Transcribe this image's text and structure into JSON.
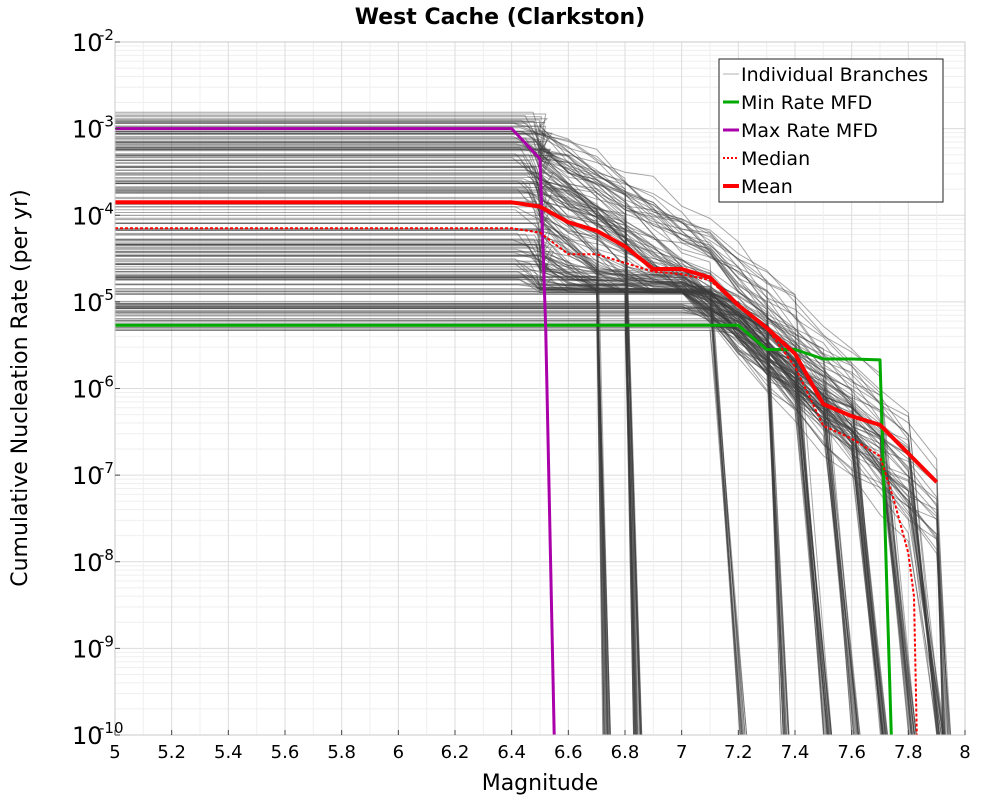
{
  "chart_data": {
    "type": "line",
    "title": "West Cache (Clarkston)",
    "xlabel": "Magnitude",
    "ylabel": "Cumulative Nucleation Rate (per yr)",
    "xlim": [
      5,
      8
    ],
    "ylim_log10": [
      -10,
      -2
    ],
    "y_scale": "log",
    "x_ticks": [
      5,
      5.2,
      5.4,
      5.6,
      5.8,
      6,
      6.2,
      6.4,
      6.6,
      6.8,
      7,
      7.2,
      7.4,
      7.6,
      7.8,
      8
    ],
    "x_tick_labels": [
      "5",
      "5.2",
      "5.4",
      "5.6",
      "5.8",
      "6",
      "6.2",
      "6.4",
      "6.6",
      "6.8",
      "7",
      "7.2",
      "7.4",
      "7.6",
      "7.8",
      "8"
    ],
    "y_ticks": [
      {
        "base": "10",
        "exp": "-2"
      },
      {
        "base": "10",
        "exp": "-3"
      },
      {
        "base": "10",
        "exp": "-4"
      },
      {
        "base": "10",
        "exp": "-5"
      },
      {
        "base": "10",
        "exp": "-6"
      },
      {
        "base": "10",
        "exp": "-7"
      },
      {
        "base": "10",
        "exp": "-8"
      },
      {
        "base": "10",
        "exp": "-9"
      },
      {
        "base": "10",
        "exp": "-10"
      }
    ],
    "grid": true,
    "legend_position": "top-right",
    "legend": [
      {
        "label": "Individual Branches",
        "color": "#b0b0b0",
        "style": "solid",
        "width": 1
      },
      {
        "label": "Min Rate MFD",
        "color": "#00aa00",
        "style": "solid",
        "width": 3
      },
      {
        "label": "Max Rate MFD",
        "color": "#aa00aa",
        "style": "solid",
        "width": 3
      },
      {
        "label": "Median",
        "color": "#ff0000",
        "style": "dotted",
        "width": 2
      },
      {
        "label": "Mean",
        "color": "#ff0000",
        "style": "solid",
        "width": 4
      }
    ],
    "series": [
      {
        "name": "Min Rate MFD",
        "color": "#00aa00",
        "width": 3,
        "dash": "",
        "x": [
          5,
          6.5,
          7.2,
          7.3,
          7.4,
          7.5,
          7.6,
          7.7,
          7.74,
          7.74
        ],
        "y_log10": [
          -5.27,
          -5.27,
          -5.27,
          -5.55,
          -5.55,
          -5.66,
          -5.66,
          -5.67,
          -10,
          -10
        ]
      },
      {
        "name": "Max Rate MFD",
        "color": "#aa00aa",
        "width": 3,
        "dash": "",
        "x": [
          5,
          6.4,
          6.5,
          6.52,
          6.55
        ],
        "y_log10": [
          -3.0,
          -3.0,
          -3.35,
          -5.3,
          -10
        ]
      },
      {
        "name": "Median",
        "color": "#ff0000",
        "width": 2,
        "dash": "3,2",
        "x": [
          5,
          6.4,
          6.5,
          6.6,
          6.7,
          6.8,
          6.9,
          7.0,
          7.1,
          7.2,
          7.3,
          7.4,
          7.5,
          7.6,
          7.7,
          7.75,
          7.8,
          7.82,
          7.83
        ],
        "y_log10": [
          -4.15,
          -4.15,
          -4.2,
          -4.45,
          -4.45,
          -4.55,
          -4.65,
          -4.68,
          -4.75,
          -5.05,
          -5.3,
          -5.75,
          -6.43,
          -6.58,
          -6.78,
          -7.3,
          -7.9,
          -8.4,
          -10
        ]
      },
      {
        "name": "Mean",
        "color": "#ff0000",
        "width": 4,
        "dash": "",
        "x": [
          5,
          6.4,
          6.5,
          6.6,
          6.7,
          6.8,
          6.9,
          7.0,
          7.1,
          7.2,
          7.3,
          7.4,
          7.5,
          7.6,
          7.7,
          7.8,
          7.9
        ],
        "y_log10": [
          -3.85,
          -3.85,
          -3.9,
          -4.08,
          -4.18,
          -4.36,
          -4.62,
          -4.62,
          -4.72,
          -5.04,
          -5.3,
          -5.6,
          -6.18,
          -6.32,
          -6.42,
          -6.75,
          -7.08
        ]
      }
    ]
  }
}
